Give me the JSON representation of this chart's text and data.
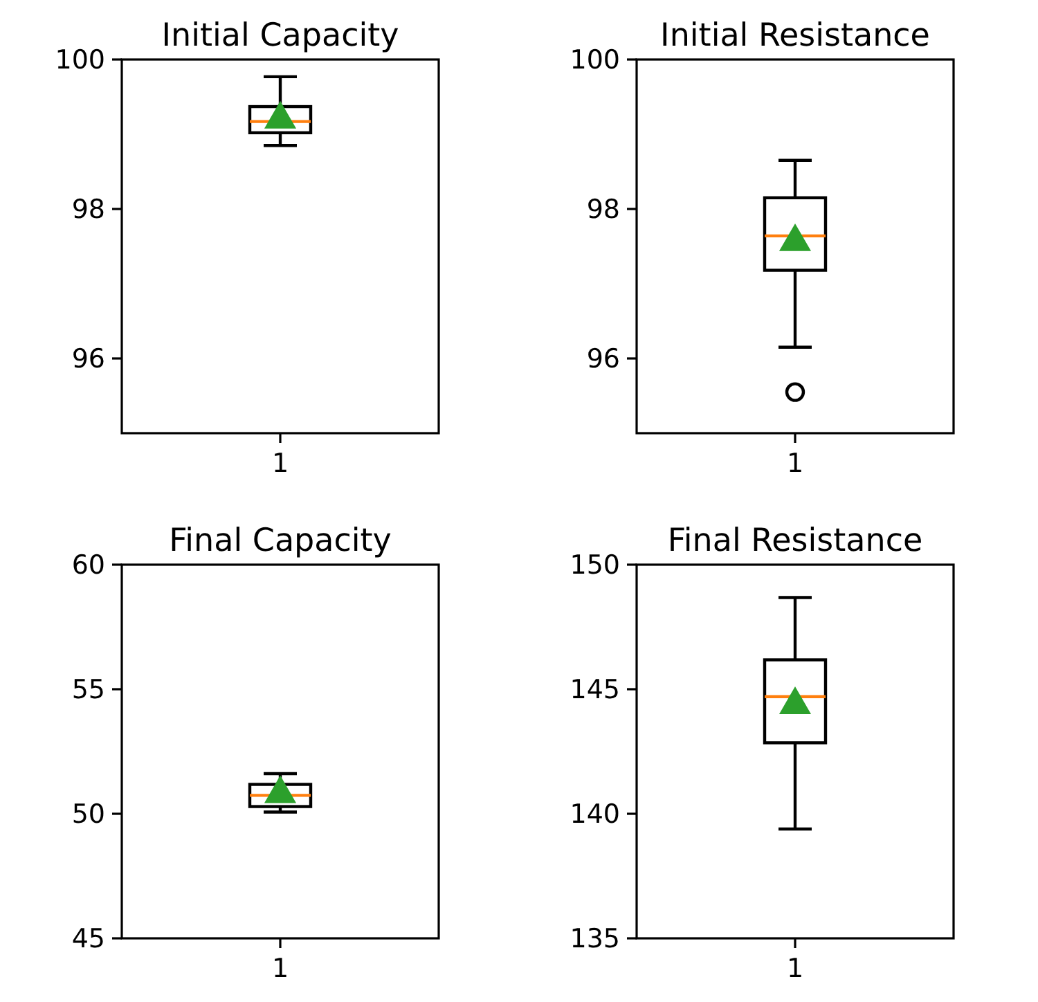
{
  "chart_data": [
    {
      "type": "box",
      "title": "Initial Capacity",
      "categories": [
        "1"
      ],
      "boxes": [
        {
          "low": 98.85,
          "q1": 99.02,
          "median": 99.17,
          "q3": 99.37,
          "high": 99.77,
          "mean": 99.2
        }
      ],
      "ylim": [
        95,
        100
      ],
      "yticks": [
        96,
        98,
        100
      ],
      "marker": "triangle"
    },
    {
      "type": "box",
      "title": "Initial  Resistance",
      "categories": [
        "1"
      ],
      "boxes": [
        {
          "low": 96.15,
          "q1": 97.18,
          "median": 97.64,
          "q3": 98.15,
          "high": 98.65,
          "mean": 97.56,
          "outliers": [
            95.55
          ]
        }
      ],
      "ylim": [
        95,
        100
      ],
      "yticks": [
        96,
        98,
        100
      ],
      "marker": "triangle"
    },
    {
      "type": "box",
      "title": "Final Capacity",
      "categories": [
        "1"
      ],
      "boxes": [
        {
          "low": 50.07,
          "q1": 50.29,
          "median": 50.74,
          "q3": 51.18,
          "high": 51.61,
          "mean": 50.8
        }
      ],
      "ylim": [
        45,
        60
      ],
      "yticks": [
        45,
        50,
        55,
        60
      ],
      "marker": "triangle"
    },
    {
      "type": "box",
      "title": "Final Resistance",
      "categories": [
        "1"
      ],
      "boxes": [
        {
          "low": 139.39,
          "q1": 142.85,
          "median": 144.7,
          "q3": 146.18,
          "high": 148.68,
          "mean": 144.37
        }
      ],
      "ylim": [
        135,
        150
      ],
      "yticks": [
        135,
        140,
        145,
        150
      ],
      "marker": "triangle"
    }
  ]
}
